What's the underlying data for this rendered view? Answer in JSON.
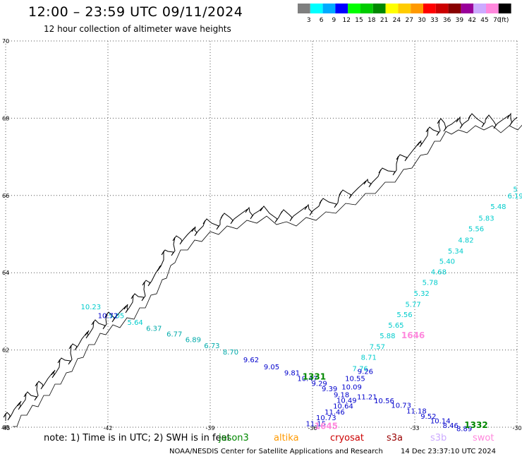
{
  "header": {
    "title": "12:00 – 23:59 UTC 09/11/2024",
    "subtitle": "12 hour collection of altimeter wave heights"
  },
  "legend": {
    "unit": "(ft)",
    "swatches": [
      {
        "label": "3",
        "color": "#7f7f7f"
      },
      {
        "label": "6",
        "color": "#00ffff"
      },
      {
        "label": "9",
        "color": "#00aaff"
      },
      {
        "label": "12",
        "color": "#0000ff"
      },
      {
        "label": "15",
        "color": "#00ff00"
      },
      {
        "label": "18",
        "color": "#00cc00"
      },
      {
        "label": "21",
        "color": "#008800"
      },
      {
        "label": "24",
        "color": "#ffff00"
      },
      {
        "label": "27",
        "color": "#ffcc00"
      },
      {
        "label": "30",
        "color": "#ff9900"
      },
      {
        "label": "33",
        "color": "#ff0000"
      },
      {
        "label": "36",
        "color": "#cc0000"
      },
      {
        "label": "39",
        "color": "#880000"
      },
      {
        "label": "42",
        "color": "#990099"
      },
      {
        "label": "45",
        "color": "#ccaaff"
      },
      {
        "label": "70",
        "color": "#ff88dd"
      },
      {
        "label": "",
        "color": "#000000"
      }
    ]
  },
  "axes": {
    "lat_labels": [
      "70",
      "68",
      "66",
      "64",
      "62",
      "60"
    ],
    "lon_labels": [
      "-45",
      "-42",
      "-39",
      "-36",
      "-33",
      "-30"
    ]
  },
  "map": {
    "lon_range": [
      -45,
      -30
    ],
    "lat_range": [
      60,
      70
    ],
    "coast_color": "#000000",
    "grid": "dotted"
  },
  "tracks": [
    {
      "color": "#00cccc",
      "points": [
        {
          "lon": -30.05,
          "lat": 66.1,
          "value": "5"
        },
        {
          "lon": -30.05,
          "lat": 65.92,
          "value": "6.19"
        },
        {
          "lon": -30.55,
          "lat": 65.65,
          "value": "5.48"
        },
        {
          "lon": -30.9,
          "lat": 65.35,
          "value": "5.83"
        },
        {
          "lon": -31.2,
          "lat": 65.07,
          "value": "5.56"
        },
        {
          "lon": -31.5,
          "lat": 64.78,
          "value": "4.82"
        },
        {
          "lon": -31.8,
          "lat": 64.5,
          "value": "5.34"
        },
        {
          "lon": -32.05,
          "lat": 64.23,
          "value": "5.40"
        },
        {
          "lon": -32.3,
          "lat": 63.96,
          "value": "4.68"
        },
        {
          "lon": -32.55,
          "lat": 63.68,
          "value": "5.78"
        },
        {
          "lon": -32.8,
          "lat": 63.4,
          "value": "5.32"
        },
        {
          "lon": -33.05,
          "lat": 63.12,
          "value": "5.77"
        },
        {
          "lon": -33.3,
          "lat": 62.85,
          "value": "5.56"
        },
        {
          "lon": -33.55,
          "lat": 62.58,
          "value": "5.65"
        },
        {
          "lon": -33.8,
          "lat": 62.3,
          "value": "5.88"
        },
        {
          "lon": -34.1,
          "lat": 62.02,
          "value": "7.57"
        },
        {
          "lon": -34.35,
          "lat": 61.75,
          "value": "8.71"
        },
        {
          "lon": -34.6,
          "lat": 61.45,
          "value": "7.76"
        },
        {
          "lon": -42.5,
          "lat": 63.05,
          "value": "10.23"
        },
        {
          "lon": -41.75,
          "lat": 62.82,
          "value": "5.05"
        },
        {
          "lon": -41.2,
          "lat": 62.65,
          "value": "5.64"
        }
      ]
    },
    {
      "color": "#00aaaa",
      "points": [
        {
          "lon": -40.65,
          "lat": 62.5,
          "value": "6.37"
        },
        {
          "lon": -40.05,
          "lat": 62.35,
          "value": "6.77"
        },
        {
          "lon": -39.5,
          "lat": 62.2,
          "value": "6.89"
        },
        {
          "lon": -38.95,
          "lat": 62.05,
          "value": "6.73"
        },
        {
          "lon": -38.4,
          "lat": 61.88,
          "value": "8.70"
        }
      ]
    },
    {
      "color": "#0000cc",
      "points": [
        {
          "lon": -42.0,
          "lat": 62.82,
          "value": "10.72"
        },
        {
          "lon": -37.8,
          "lat": 61.68,
          "value": "9.62"
        },
        {
          "lon": -37.2,
          "lat": 61.5,
          "value": "9.05"
        },
        {
          "lon": -36.6,
          "lat": 61.34,
          "value": "9.81"
        },
        {
          "lon": -36.15,
          "lat": 61.2,
          "value": "10.47"
        },
        {
          "lon": -35.8,
          "lat": 61.07,
          "value": "9.29"
        },
        {
          "lon": -35.5,
          "lat": 60.93,
          "value": "9.39"
        },
        {
          "lon": -35.15,
          "lat": 60.78,
          "value": "9.18"
        },
        {
          "lon": -35.0,
          "lat": 60.63,
          "value": "10.49"
        },
        {
          "lon": -35.1,
          "lat": 60.48,
          "value": "10.64"
        },
        {
          "lon": -35.35,
          "lat": 60.33,
          "value": "11.46"
        },
        {
          "lon": -35.6,
          "lat": 60.18,
          "value": "10.73"
        },
        {
          "lon": -35.9,
          "lat": 60.03,
          "value": "11.15"
        },
        {
          "lon": -34.45,
          "lat": 61.38,
          "value": "9.26"
        },
        {
          "lon": -34.75,
          "lat": 61.2,
          "value": "10.55"
        },
        {
          "lon": -34.85,
          "lat": 60.98,
          "value": "10.09"
        },
        {
          "lon": -34.4,
          "lat": 60.72,
          "value": "11.21"
        },
        {
          "lon": -33.9,
          "lat": 60.62,
          "value": "10.56"
        },
        {
          "lon": -33.4,
          "lat": 60.5,
          "value": "10.73"
        },
        {
          "lon": -32.95,
          "lat": 60.36,
          "value": "11.18"
        },
        {
          "lon": -32.6,
          "lat": 60.22,
          "value": "9.52"
        },
        {
          "lon": -32.25,
          "lat": 60.1,
          "value": "10.14"
        },
        {
          "lon": -31.95,
          "lat": 59.98,
          "value": "8.46"
        },
        {
          "lon": -31.55,
          "lat": 59.9,
          "value": "8.89"
        }
      ]
    }
  ],
  "track_labels": [
    {
      "text": "1331",
      "color": "#008800",
      "lon": -35.95,
      "lat": 61.23
    },
    {
      "text": "1646",
      "color": "#ff88dd",
      "lon": -33.05,
      "lat": 62.3
    },
    {
      "text": "1645",
      "color": "#ff88dd",
      "lon": -35.6,
      "lat": 59.95
    },
    {
      "text": "1332",
      "color": "#008800",
      "lon": -31.2,
      "lat": 59.98
    }
  ],
  "footer": {
    "note": "note:  1) Time is in UTC; 2) SWH is in feet",
    "satellites": [
      {
        "name": "jason3",
        "color": "#008800"
      },
      {
        "name": "altika",
        "color": "#ff9900"
      },
      {
        "name": "cryosat",
        "color": "#cc0000"
      },
      {
        "name": "s3a",
        "color": "#990000"
      },
      {
        "name": "s3b",
        "color": "#ccaaff"
      },
      {
        "name": "swot",
        "color": "#ff88dd"
      }
    ],
    "credit": "NOAA/NESDIS Center for Satellite Applications and Research",
    "timestamp": "14 Dec 23:37:10 UTC 2024"
  }
}
